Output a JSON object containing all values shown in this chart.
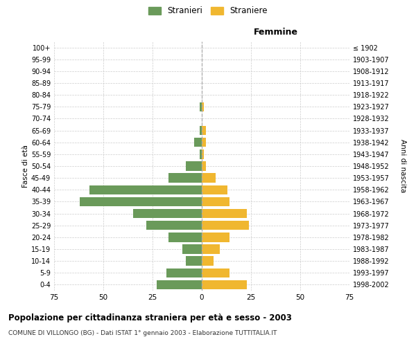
{
  "age_groups": [
    "0-4",
    "5-9",
    "10-14",
    "15-19",
    "20-24",
    "25-29",
    "30-34",
    "35-39",
    "40-44",
    "45-49",
    "50-54",
    "55-59",
    "60-64",
    "65-69",
    "70-74",
    "75-79",
    "80-84",
    "85-89",
    "90-94",
    "95-99",
    "100+"
  ],
  "birth_years": [
    "1998-2002",
    "1993-1997",
    "1988-1992",
    "1983-1987",
    "1978-1982",
    "1973-1977",
    "1968-1972",
    "1963-1967",
    "1958-1962",
    "1953-1957",
    "1948-1952",
    "1943-1947",
    "1938-1942",
    "1933-1937",
    "1928-1932",
    "1923-1927",
    "1918-1922",
    "1913-1917",
    "1908-1912",
    "1903-1907",
    "≤ 1902"
  ],
  "males": [
    23,
    18,
    8,
    10,
    17,
    28,
    35,
    62,
    57,
    17,
    8,
    1,
    4,
    1,
    0,
    1,
    0,
    0,
    0,
    0,
    0
  ],
  "females": [
    23,
    14,
    6,
    9,
    14,
    24,
    23,
    14,
    13,
    7,
    2,
    1,
    2,
    2,
    0,
    1,
    0,
    0,
    0,
    0,
    0
  ],
  "male_color": "#6a9a5a",
  "female_color": "#f0b730",
  "background_color": "#ffffff",
  "grid_color": "#cccccc",
  "title": "Popolazione per cittadinanza straniera per età e sesso - 2003",
  "subtitle": "COMUNE DI VILLONGO (BG) - Dati ISTAT 1° gennaio 2003 - Elaborazione TUTTITALIA.IT",
  "xlabel_right": "Femmine",
  "ylabel_left": "Fasce di età",
  "ylabel_right": "Anni di nascita",
  "xlim": 75,
  "legend_male": "Stranieri",
  "legend_female": "Straniere"
}
